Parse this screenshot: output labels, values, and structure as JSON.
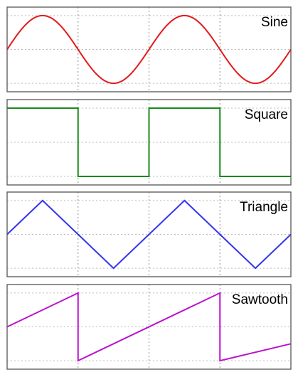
{
  "chart_data": [
    {
      "type": "line",
      "title": "Sine",
      "color": "#e31a1c",
      "xlim": [
        0,
        4
      ],
      "ylim": [
        -1.25,
        1.25
      ],
      "grid": true,
      "legend": "none",
      "series": [
        {
          "x": [
            0,
            0.5,
            1,
            1.5,
            2,
            2.5,
            3,
            3.5,
            4
          ],
          "y": [
            0,
            1,
            0,
            -1,
            0,
            1,
            0,
            -1,
            0
          ],
          "interpolation": "sine"
        }
      ]
    },
    {
      "type": "line",
      "title": "Square",
      "color": "#1a8a1a",
      "xlim": [
        0,
        4
      ],
      "ylim": [
        -1.25,
        1.25
      ],
      "grid": true,
      "legend": "none",
      "series": [
        {
          "x": [
            0,
            1,
            1,
            2,
            2,
            3,
            3,
            4
          ],
          "y": [
            1,
            1,
            -1,
            -1,
            1,
            1,
            -1,
            -1
          ]
        }
      ]
    },
    {
      "type": "line",
      "title": "Triangle",
      "color": "#3333ee",
      "xlim": [
        0,
        4
      ],
      "ylim": [
        -1.25,
        1.25
      ],
      "grid": true,
      "legend": "none",
      "series": [
        {
          "x": [
            0,
            0.5,
            1.5,
            2.5,
            3.5,
            4
          ],
          "y": [
            0,
            1,
            -1,
            1,
            -1,
            0
          ]
        }
      ]
    },
    {
      "type": "line",
      "title": "Sawtooth",
      "color": "#bb11cc",
      "xlim": [
        0,
        4
      ],
      "ylim": [
        -1.25,
        1.25
      ],
      "grid": true,
      "legend": "none",
      "series": [
        {
          "x": [
            0,
            1,
            1,
            3,
            3,
            4
          ],
          "y": [
            0,
            1,
            -1,
            1,
            -1,
            -0.5
          ]
        }
      ]
    }
  ]
}
